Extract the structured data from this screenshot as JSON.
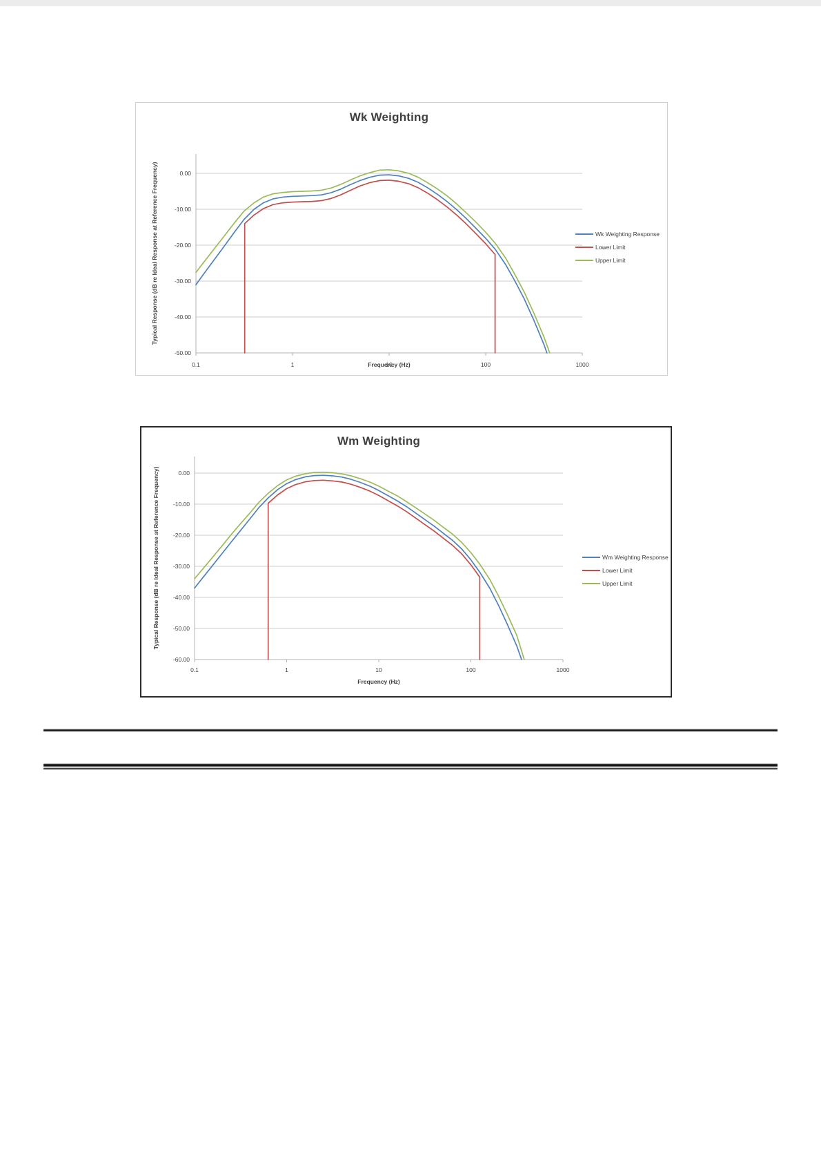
{
  "page": {
    "background": "#ffffff"
  },
  "chart_data": [
    {
      "type": "line",
      "title": "Wk Weighting",
      "xlabel": "Frequency (Hz)",
      "ylabel": "Typical Response (dB re Ideal Response at Reference Frequency)",
      "x_scale": "log",
      "xlim": [
        0.1,
        1000
      ],
      "ylim": [
        -50,
        5
      ],
      "grid": "horizontal",
      "legend_position": "right",
      "x_tick_values": [
        0.1,
        1,
        10,
        100,
        1000
      ],
      "x_tick_labels": [
        "0.1",
        "1",
        "10",
        "100",
        "1000"
      ],
      "y_tick_values": [
        0,
        -10,
        -20,
        -30,
        -40,
        -50
      ],
      "y_tick_labels": [
        "0.00",
        "-10.00",
        "-20.00",
        "-30.00",
        "-40.00",
        "-50.00"
      ],
      "series": [
        {
          "name": "Wk Weighting Response",
          "color": "#4F81BD",
          "points": [
            [
              0.1,
              -31
            ],
            [
              0.125,
              -27.4
            ],
            [
              0.16,
              -23.5
            ],
            [
              0.2,
              -20
            ],
            [
              0.25,
              -16.4
            ],
            [
              0.315,
              -12.8
            ],
            [
              0.4,
              -10
            ],
            [
              0.5,
              -8.2
            ],
            [
              0.63,
              -7.1
            ],
            [
              0.8,
              -6.6
            ],
            [
              1,
              -6.4
            ],
            [
              1.25,
              -6.3
            ],
            [
              1.6,
              -6.2
            ],
            [
              2,
              -6
            ],
            [
              2.5,
              -5.4
            ],
            [
              3.15,
              -4.4
            ],
            [
              4,
              -3.1
            ],
            [
              5,
              -2
            ],
            [
              6.3,
              -1.1
            ],
            [
              8,
              -0.5
            ],
            [
              10,
              -0.4
            ],
            [
              12.5,
              -0.7
            ],
            [
              16,
              -1.4
            ],
            [
              20,
              -2.5
            ],
            [
              25,
              -4
            ],
            [
              31.5,
              -5.8
            ],
            [
              40,
              -7.9
            ],
            [
              50,
              -10.1
            ],
            [
              63,
              -12.6
            ],
            [
              80,
              -15.4
            ],
            [
              100,
              -18.1
            ],
            [
              125,
              -21.1
            ],
            [
              160,
              -25.3
            ],
            [
              200,
              -29.9
            ],
            [
              250,
              -34.9
            ],
            [
              315,
              -40.9
            ],
            [
              400,
              -47.6
            ],
            [
              430,
              -50
            ]
          ]
        },
        {
          "name": "Lower Limit",
          "color": "#C0504D",
          "points": [
            [
              0.32,
              -50
            ],
            [
              0.32,
              -14
            ],
            [
              0.4,
              -11.6
            ],
            [
              0.5,
              -9.8
            ],
            [
              0.63,
              -8.7
            ],
            [
              0.8,
              -8.2
            ],
            [
              1,
              -8
            ],
            [
              1.25,
              -7.9
            ],
            [
              1.6,
              -7.8
            ],
            [
              2,
              -7.6
            ],
            [
              2.5,
              -7
            ],
            [
              3.15,
              -6
            ],
            [
              4,
              -4.7
            ],
            [
              5,
              -3.5
            ],
            [
              6.3,
              -2.6
            ],
            [
              8,
              -2
            ],
            [
              10,
              -1.9
            ],
            [
              12.5,
              -2.2
            ],
            [
              16,
              -2.9
            ],
            [
              20,
              -4
            ],
            [
              25,
              -5.5
            ],
            [
              31.5,
              -7.3
            ],
            [
              40,
              -9.4
            ],
            [
              50,
              -11.6
            ],
            [
              63,
              -14.1
            ],
            [
              80,
              -16.9
            ],
            [
              100,
              -19.6
            ],
            [
              125,
              -22.6
            ],
            [
              125,
              -50
            ]
          ]
        },
        {
          "name": "Upper Limit",
          "color": "#9BBB59",
          "points": [
            [
              0.1,
              -27.6
            ],
            [
              0.125,
              -24.2
            ],
            [
              0.16,
              -20.5
            ],
            [
              0.2,
              -17.2
            ],
            [
              0.25,
              -13.8
            ],
            [
              0.315,
              -10.5
            ],
            [
              0.4,
              -8.2
            ],
            [
              0.5,
              -6.6
            ],
            [
              0.63,
              -5.7
            ],
            [
              0.8,
              -5.3
            ],
            [
              1,
              -5.1
            ],
            [
              1.25,
              -5
            ],
            [
              1.6,
              -4.9
            ],
            [
              2,
              -4.7
            ],
            [
              2.5,
              -4.1
            ],
            [
              3.15,
              -3.1
            ],
            [
              4,
              -1.8
            ],
            [
              5,
              -0.7
            ],
            [
              6.3,
              0.2
            ],
            [
              8,
              0.9
            ],
            [
              10,
              1
            ],
            [
              12.5,
              0.7
            ],
            [
              16,
              0
            ],
            [
              20,
              -1.1
            ],
            [
              25,
              -2.6
            ],
            [
              31.5,
              -4.3
            ],
            [
              40,
              -6.3
            ],
            [
              50,
              -8.5
            ],
            [
              63,
              -11
            ],
            [
              80,
              -13.7
            ],
            [
              100,
              -16.4
            ],
            [
              125,
              -19.4
            ],
            [
              160,
              -23.5
            ],
            [
              200,
              -28.1
            ],
            [
              250,
              -33
            ],
            [
              315,
              -38.9
            ],
            [
              400,
              -45.5
            ],
            [
              460,
              -50
            ]
          ]
        }
      ]
    },
    {
      "type": "line",
      "title": "Wm Weighting",
      "xlabel": "Frequency (Hz)",
      "ylabel": "Typical Response (dB re Ideal Response at Reference Frequency)",
      "x_scale": "log",
      "xlim": [
        0.1,
        1000
      ],
      "ylim": [
        -60,
        5
      ],
      "grid": "horizontal",
      "legend_position": "right",
      "x_tick_values": [
        0.1,
        1,
        10,
        100,
        1000
      ],
      "x_tick_labels": [
        "0.1",
        "1",
        "10",
        "100",
        "1000"
      ],
      "y_tick_values": [
        0,
        -10,
        -20,
        -30,
        -40,
        -50,
        -60
      ],
      "y_tick_labels": [
        "0.00",
        "-10.00",
        "-20.00",
        "-30.00",
        "-40.00",
        "-50.00",
        "-60.00"
      ],
      "series": [
        {
          "name": "Wm Weighting Response",
          "color": "#4F81BD",
          "points": [
            [
              0.1,
              -37
            ],
            [
              0.125,
              -33.4
            ],
            [
              0.16,
              -29.4
            ],
            [
              0.2,
              -25.8
            ],
            [
              0.25,
              -22.2
            ],
            [
              0.315,
              -18.5
            ],
            [
              0.4,
              -14.7
            ],
            [
              0.5,
              -11.1
            ],
            [
              0.63,
              -8
            ],
            [
              0.8,
              -5.3
            ],
            [
              1,
              -3.4
            ],
            [
              1.25,
              -2.1
            ],
            [
              1.6,
              -1.2
            ],
            [
              2,
              -0.8
            ],
            [
              2.5,
              -0.7
            ],
            [
              3.15,
              -0.9
            ],
            [
              4,
              -1.3
            ],
            [
              5,
              -2
            ],
            [
              6.3,
              -3
            ],
            [
              8,
              -4.2
            ],
            [
              10,
              -5.6
            ],
            [
              12.5,
              -7.2
            ],
            [
              16,
              -9
            ],
            [
              20,
              -10.8
            ],
            [
              25,
              -12.8
            ],
            [
              31.5,
              -14.9
            ],
            [
              40,
              -17.1
            ],
            [
              50,
              -19.3
            ],
            [
              63,
              -21.6
            ],
            [
              80,
              -24.5
            ],
            [
              100,
              -27.9
            ],
            [
              125,
              -31.9
            ],
            [
              160,
              -37
            ],
            [
              200,
              -42.6
            ],
            [
              250,
              -48.8
            ],
            [
              315,
              -55.6
            ],
            [
              355,
              -60
            ]
          ]
        },
        {
          "name": "Lower Limit",
          "color": "#C0504D",
          "points": [
            [
              0.63,
              -60
            ],
            [
              0.63,
              -9.7
            ],
            [
              0.8,
              -7
            ],
            [
              1,
              -5
            ],
            [
              1.25,
              -3.7
            ],
            [
              1.6,
              -2.8
            ],
            [
              2,
              -2.4
            ],
            [
              2.5,
              -2.3
            ],
            [
              3.15,
              -2.5
            ],
            [
              4,
              -2.9
            ],
            [
              5,
              -3.6
            ],
            [
              6.3,
              -4.6
            ],
            [
              8,
              -5.8
            ],
            [
              10,
              -7.2
            ],
            [
              12.5,
              -8.8
            ],
            [
              16,
              -10.6
            ],
            [
              20,
              -12.4
            ],
            [
              25,
              -14.4
            ],
            [
              31.5,
              -16.5
            ],
            [
              40,
              -18.7
            ],
            [
              50,
              -20.9
            ],
            [
              63,
              -23.2
            ],
            [
              80,
              -26.1
            ],
            [
              100,
              -29.5
            ],
            [
              125,
              -33.5
            ],
            [
              125,
              -60
            ]
          ]
        },
        {
          "name": "Upper Limit",
          "color": "#9BBB59",
          "points": [
            [
              0.1,
              -34
            ],
            [
              0.125,
              -30.6
            ],
            [
              0.16,
              -26.8
            ],
            [
              0.2,
              -23.3
            ],
            [
              0.25,
              -19.8
            ],
            [
              0.315,
              -16.3
            ],
            [
              0.4,
              -12.8
            ],
            [
              0.5,
              -9.4
            ],
            [
              0.63,
              -6.5
            ],
            [
              0.8,
              -4
            ],
            [
              1,
              -2.2
            ],
            [
              1.25,
              -1
            ],
            [
              1.6,
              -0.2
            ],
            [
              2,
              0.2
            ],
            [
              2.5,
              0.3
            ],
            [
              3.15,
              0.1
            ],
            [
              4,
              -0.3
            ],
            [
              5,
              -0.9
            ],
            [
              6.3,
              -1.8
            ],
            [
              8,
              -2.9
            ],
            [
              10,
              -4.2
            ],
            [
              12.5,
              -5.7
            ],
            [
              16,
              -7.4
            ],
            [
              20,
              -9.2
            ],
            [
              25,
              -11.1
            ],
            [
              31.5,
              -13.1
            ],
            [
              40,
              -15.2
            ],
            [
              50,
              -17.4
            ],
            [
              63,
              -19.6
            ],
            [
              80,
              -22.4
            ],
            [
              100,
              -25.6
            ],
            [
              125,
              -29.3
            ],
            [
              160,
              -34.2
            ],
            [
              200,
              -39.6
            ],
            [
              250,
              -45.6
            ],
            [
              315,
              -52.2
            ],
            [
              380,
              -60
            ]
          ]
        }
      ]
    }
  ]
}
